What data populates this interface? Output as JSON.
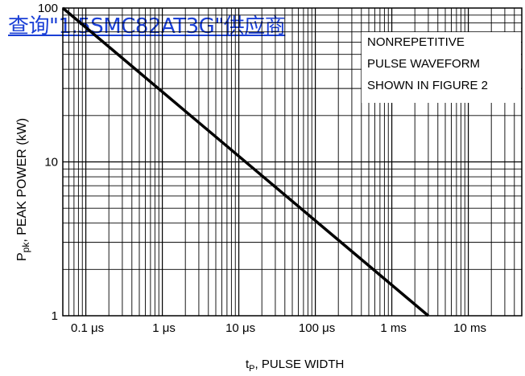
{
  "overlay_link": "查询\"1.5SMC82AT3G\"供应商",
  "chart_data": {
    "type": "line",
    "title": "",
    "xlabel_main": "t",
    "xlabel_sub": "P",
    "xlabel_rest": ", PULSE WIDTH",
    "ylabel_main": "P",
    "ylabel_sub": "pk",
    "ylabel_rest": ", PEAK POWER (kW)",
    "x_scale": "log",
    "y_scale": "log",
    "xlim_s": [
      5e-08,
      0.05
    ],
    "ylim": [
      1,
      100
    ],
    "x_ticks": [
      {
        "value": 1e-07,
        "label": "0.1 μs"
      },
      {
        "value": 1e-06,
        "label": "1 μs"
      },
      {
        "value": 1e-05,
        "label": "10 μs"
      },
      {
        "value": 0.0001,
        "label": "100 μs"
      },
      {
        "value": 0.001,
        "label": "1 ms"
      },
      {
        "value": 0.01,
        "label": "10 ms"
      }
    ],
    "y_ticks": [
      {
        "value": 100,
        "label": "100"
      },
      {
        "value": 10,
        "label": "10"
      },
      {
        "value": 1,
        "label": "1"
      }
    ],
    "grid": true,
    "annotation": [
      "NONREPETITIVE",
      "PULSE WAVEFORM",
      "SHOWN IN FIGURE 2"
    ],
    "series": [
      {
        "x_s": [
          5e-08,
          0.003
        ],
        "y": [
          100,
          1
        ],
        "color": "#000000"
      }
    ]
  }
}
